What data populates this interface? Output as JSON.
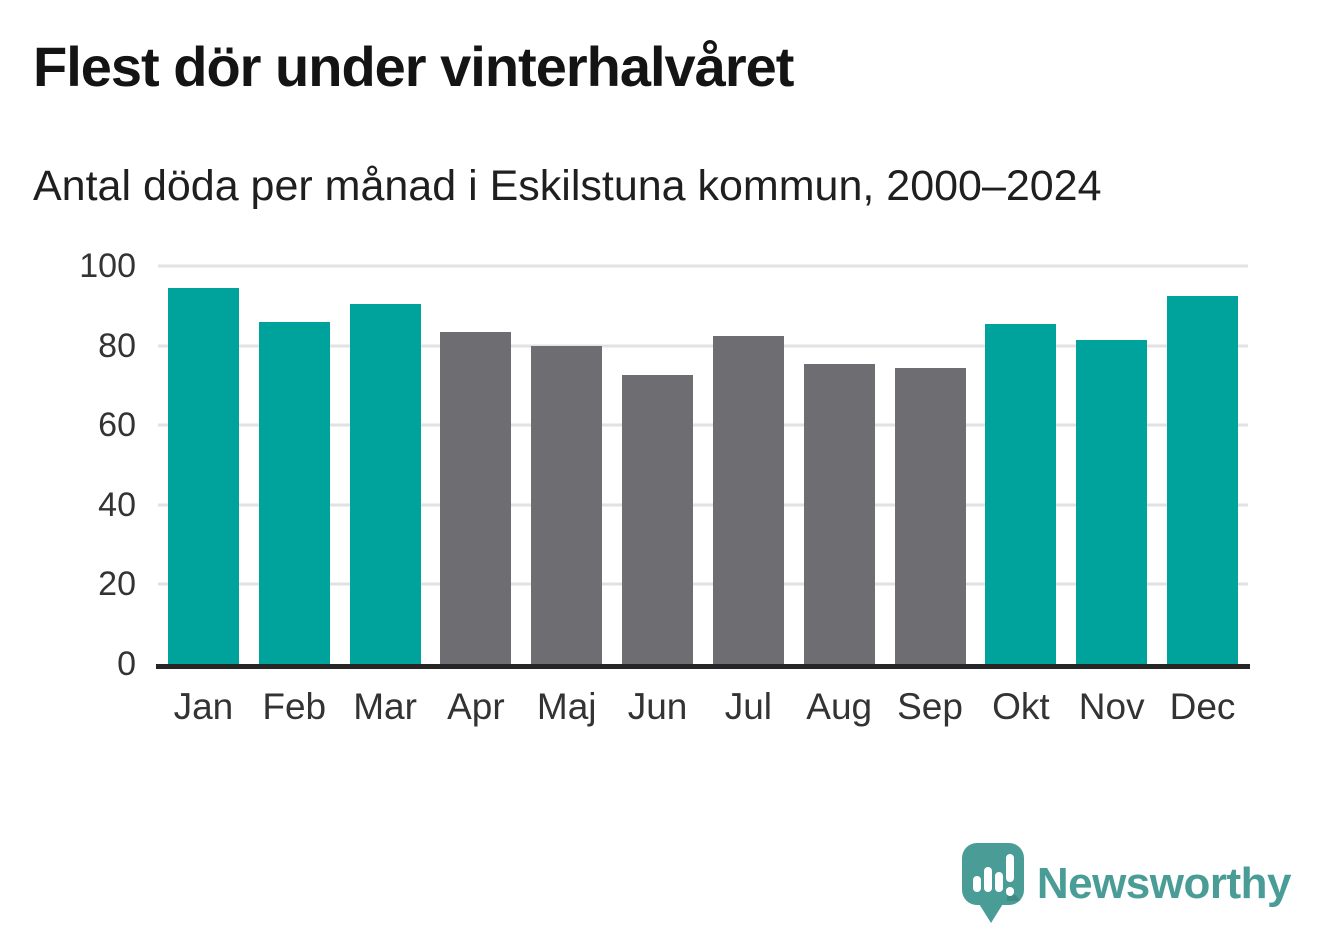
{
  "chart_data": {
    "type": "bar",
    "title": "Flest dör under vinterhalvåret",
    "subtitle": "Antal döda per månad i Eskilstuna kommun, 2000–2024",
    "categories": [
      "Jan",
      "Feb",
      "Mar",
      "Apr",
      "Maj",
      "Jun",
      "Jul",
      "Aug",
      "Sep",
      "Okt",
      "Nov",
      "Dec"
    ],
    "values": [
      94.5,
      86,
      90.5,
      83.5,
      80,
      72.5,
      82.5,
      75.5,
      74.5,
      85.5,
      81.5,
      92.5
    ],
    "seasons": [
      "winter",
      "winter",
      "winter",
      "summer",
      "summer",
      "summer",
      "summer",
      "summer",
      "summer",
      "winter",
      "winter",
      "winter"
    ],
    "colors": {
      "winter": "#00a39b",
      "summer": "#6d6d72"
    },
    "xlabel": "",
    "ylabel": "",
    "ylim": [
      0,
      100
    ],
    "yticks": [
      0,
      20,
      40,
      60,
      80,
      100
    ],
    "grid": "horizontal-light-gray",
    "legend": "none",
    "axis_color": "#262626",
    "grid_color": "#e2e2e2",
    "tick_label_color": "#333333"
  },
  "branding": {
    "name": "Newsworthy",
    "color": "#4a9d96",
    "icon": "bar-chart-speech-bubble-icon"
  }
}
